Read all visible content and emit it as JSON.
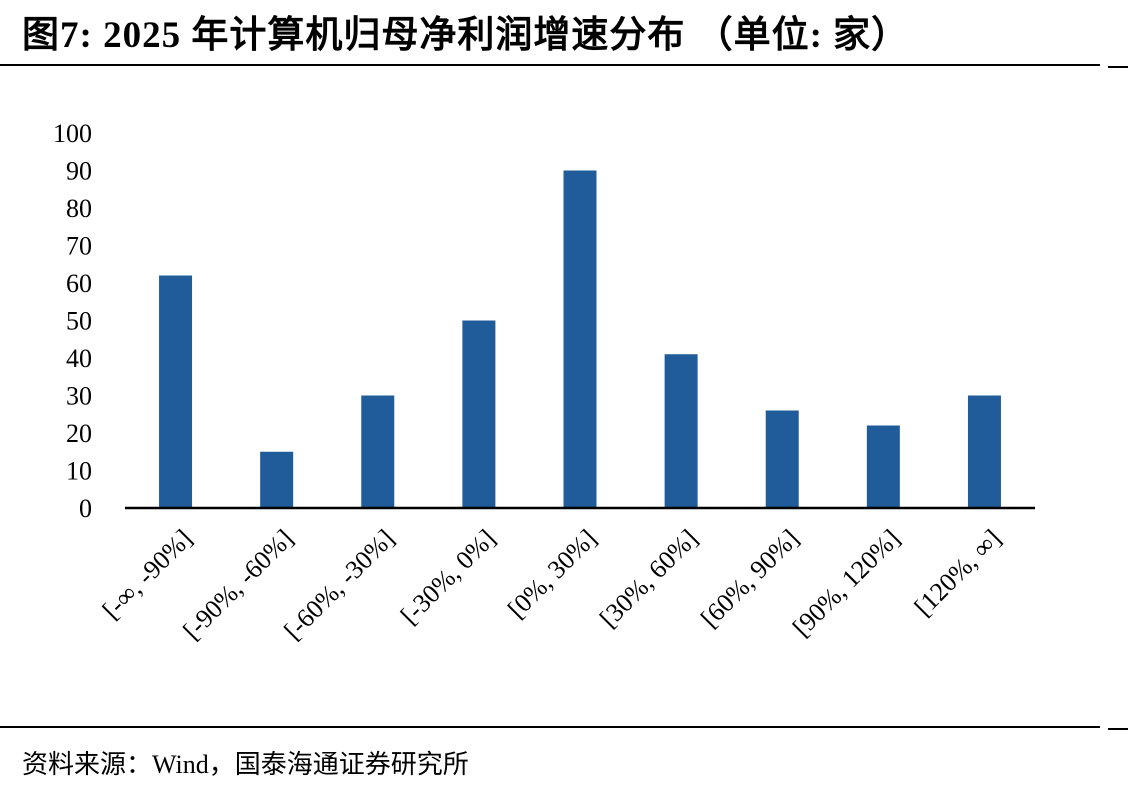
{
  "title": "图7:  2025 年计算机归母净利润增速分布 （单位:  家）",
  "source": "资料来源：Wind，国泰海通证券研究所",
  "colors": {
    "bar": "#1F5C99",
    "axis": "#000000"
  },
  "chart_data": {
    "type": "bar",
    "categories": [
      "[-∞,  -90%]",
      "[-90%,  -60%]",
      "[-60%,  -30%]",
      "[-30%,  0%]",
      "[0%,  30%]",
      "[30%,  60%]",
      "[60%,  90%]",
      "[90%,  120%]",
      "[120%,  ∞]"
    ],
    "values": [
      62,
      15,
      30,
      50,
      90,
      41,
      26,
      22,
      30
    ],
    "xlabel": "",
    "ylabel": "",
    "ylim": [
      0,
      100
    ],
    "yticks": [
      0,
      10,
      20,
      30,
      40,
      50,
      60,
      70,
      80,
      90,
      100
    ],
    "grid": false,
    "legend": "none"
  }
}
